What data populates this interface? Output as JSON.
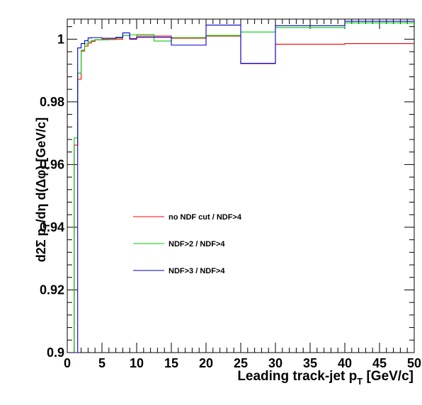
{
  "chart_data": {
    "type": "line",
    "xlabel": "Leading track-jet p",
    "xlabel_sub": "T",
    "xlabel_unit": " [GeV/c]",
    "ylabel_pre": "d2Σ p",
    "ylabel_sub": "T",
    "ylabel_post": "/dη d(Δφ) [GeV/c]",
    "xlim": [
      0,
      50
    ],
    "ylim": [
      0.9,
      1.0064
    ],
    "x_ticks": [
      0,
      5,
      10,
      15,
      20,
      25,
      30,
      35,
      40,
      45,
      50
    ],
    "y_ticks": [
      0.9,
      0.92,
      0.94,
      0.96,
      0.98,
      1
    ],
    "y_tick_labels": [
      "0.9",
      "0.92",
      "0.94",
      "0.96",
      "0.98",
      "1"
    ],
    "legend": {
      "placement": "center-left"
    },
    "bin_edges": [
      1,
      1.5,
      2,
      2.5,
      3,
      3.5,
      4,
      5,
      6,
      7,
      8,
      9,
      10,
      12.5,
      15,
      20,
      25,
      30,
      40,
      50
    ],
    "series": [
      {
        "name": "no NDF cut / NDF>4",
        "color": "#ff0000",
        "values": [
          0.9662,
          0.9872,
          0.9962,
          0.9978,
          0.9988,
          0.9993,
          0.9998,
          1.0,
          0.9999,
          1.0,
          1.0012,
          1.0002,
          1.001,
          1.001,
          1.0003,
          1.001,
          0.9922,
          0.9984,
          0.9986
        ]
      },
      {
        "name": "NDF>2 / NDF>4",
        "color": "#00cc00",
        "values": [
          0.9685,
          0.9892,
          0.9965,
          0.9985,
          0.9992,
          0.9996,
          0.9998,
          0.9998,
          1.0002,
          1.0004,
          1.0012,
          1.0014,
          1.0015,
          0.9994,
          1.0005,
          1.0012,
          1.0023,
          1.0037,
          1.0052
        ]
      },
      {
        "name": "NDF>3 / NDF>4",
        "color": "#0000cc",
        "values": [
          0.9,
          0.9972,
          0.9986,
          0.9995,
          1.0004,
          1.0005,
          1.0005,
          1.0003,
          1.0003,
          1.0006,
          1.002,
          1.0,
          1.0006,
          1.0006,
          0.9981,
          1.0045,
          0.9923,
          1.0043,
          1.0057
        ]
      }
    ]
  }
}
